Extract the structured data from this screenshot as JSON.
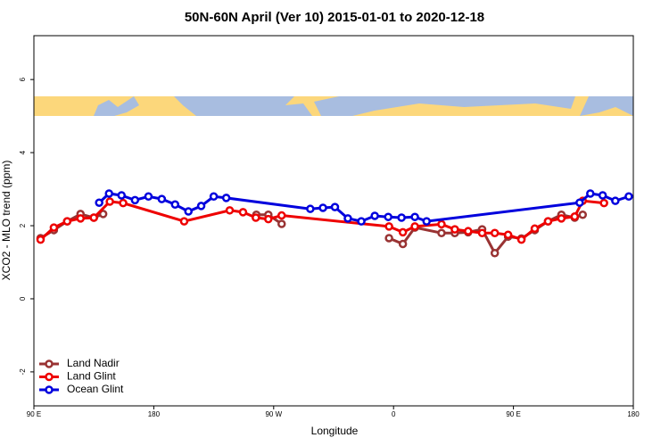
{
  "chart_data": {
    "type": "line",
    "title": "50N-60N April (Ver 10)   2015-01-01 to 2020-12-18",
    "x_label": "Longitude",
    "y_label": "XCO2 - MLO trend (ppm)",
    "xlim": [
      90,
      540
    ],
    "ylim": [
      -2.93,
      7.2
    ],
    "xticks": [
      {
        "value": 90,
        "label": "90 E"
      },
      180,
      {
        "value": 270,
        "label": "90 W"
      },
      {
        "value": 360,
        "label": "0"
      },
      {
        "value": 450,
        "label": "90 E"
      },
      {
        "value": 540,
        "label": "180"
      }
    ],
    "yticks": [
      -2,
      0,
      2,
      4,
      6
    ],
    "legend": "bottom-left",
    "series": [
      {
        "name": "Land Nadir",
        "color": "#993333",
        "x": [
          95,
          105,
          115,
          125,
          135,
          142,
          247,
          257,
          266,
          276,
          294.8,
          356.6,
          367,
          376,
          396,
          406,
          416,
          426.5,
          436,
          446,
          456,
          466,
          476,
          486,
          496,
          502
        ],
        "values": [
          1.66,
          1.88,
          2.12,
          2.32,
          2.22,
          2.32,
          null,
          2.3,
          2.3,
          2.05,
          null,
          1.66,
          1.5,
          1.95,
          1.8,
          1.8,
          1.82,
          1.9,
          1.25,
          1.7,
          1.65,
          1.88,
          2.12,
          2.3,
          2.22,
          2.3
        ]
      },
      {
        "name": "Land Glint",
        "color": "#ee0000",
        "x": [
          95,
          105,
          115,
          125,
          135,
          147,
          157,
          202.8,
          237,
          247,
          256.6,
          266,
          276,
          356.6,
          367,
          376,
          396,
          406,
          416,
          426.5,
          436,
          446,
          456,
          466,
          476,
          486,
          496,
          502,
          518
        ],
        "values": [
          1.62,
          1.95,
          2.12,
          2.2,
          2.22,
          2.66,
          2.62,
          2.12,
          2.42,
          2.37,
          2.22,
          2.18,
          2.28,
          1.98,
          1.82,
          1.98,
          2.04,
          1.9,
          1.85,
          1.8,
          1.8,
          1.75,
          1.62,
          1.92,
          2.12,
          2.2,
          2.25,
          2.68,
          2.62
        ]
      },
      {
        "name": "Ocean Glint",
        "color": "#0000dd",
        "x": [
          139,
          146.4,
          155.8,
          165.9,
          176,
          186,
          196,
          206,
          215.6,
          225,
          234.4,
          297.5,
          307,
          316,
          325.7,
          335.8,
          345.9,
          356,
          366,
          376,
          384.8,
          499.7,
          507.7,
          517,
          526.5,
          536.6
        ],
        "values": [
          2.63,
          2.88,
          2.83,
          2.7,
          2.8,
          2.73,
          2.58,
          2.39,
          2.54,
          2.8,
          2.76,
          2.46,
          2.49,
          2.51,
          2.2,
          2.12,
          2.27,
          2.24,
          2.22,
          2.24,
          2.12,
          2.63,
          2.88,
          2.83,
          2.68,
          2.8
        ]
      }
    ]
  }
}
